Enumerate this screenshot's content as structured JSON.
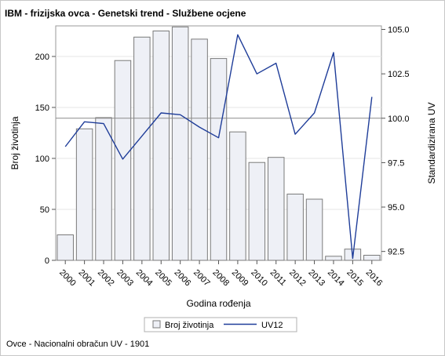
{
  "chart_data": {
    "type": "bar",
    "title": "IBM - frizijska ovca - Genetski trend - Službene ocjene",
    "xlabel": "Godina rođenja",
    "ylabel": "Broj životinja",
    "y2label": "Standardizirana UV",
    "categories": [
      "2000",
      "2001",
      "2002",
      "2003",
      "2004",
      "2005",
      "2006",
      "2007",
      "2008",
      "2009",
      "2010",
      "2011",
      "2012",
      "2013",
      "2014",
      "2015",
      "2016"
    ],
    "series": [
      {
        "name": "Broj životinja",
        "type": "bar",
        "axis": "left",
        "color": "#eef0f6",
        "stroke": "#7a7a7a",
        "values": [
          25,
          129,
          140,
          196,
          219,
          225,
          229,
          217,
          198,
          126,
          96,
          101,
          65,
          60,
          4,
          11,
          5
        ]
      },
      {
        "name": "UV12",
        "type": "line",
        "axis": "right",
        "color": "#1f3d99",
        "values": [
          98.4,
          99.8,
          99.7,
          97.7,
          99.0,
          100.3,
          100.2,
          99.5,
          98.9,
          104.7,
          102.5,
          103.1,
          99.1,
          100.3,
          103.7,
          92.1,
          101.2
        ]
      }
    ],
    "ylim": [
      0,
      230
    ],
    "yticks": [
      0,
      50,
      100,
      150,
      200
    ],
    "y2lim": [
      92.0,
      105.2
    ],
    "y2ticks": [
      "92.5",
      "95.0",
      "97.5",
      "100.0",
      "102.5",
      "105.0"
    ],
    "reference_line_y2": 100.0,
    "grid": true,
    "legend_position": "bottom"
  },
  "footnote": "Ovce - Nacionalni obračun UV - 1901"
}
